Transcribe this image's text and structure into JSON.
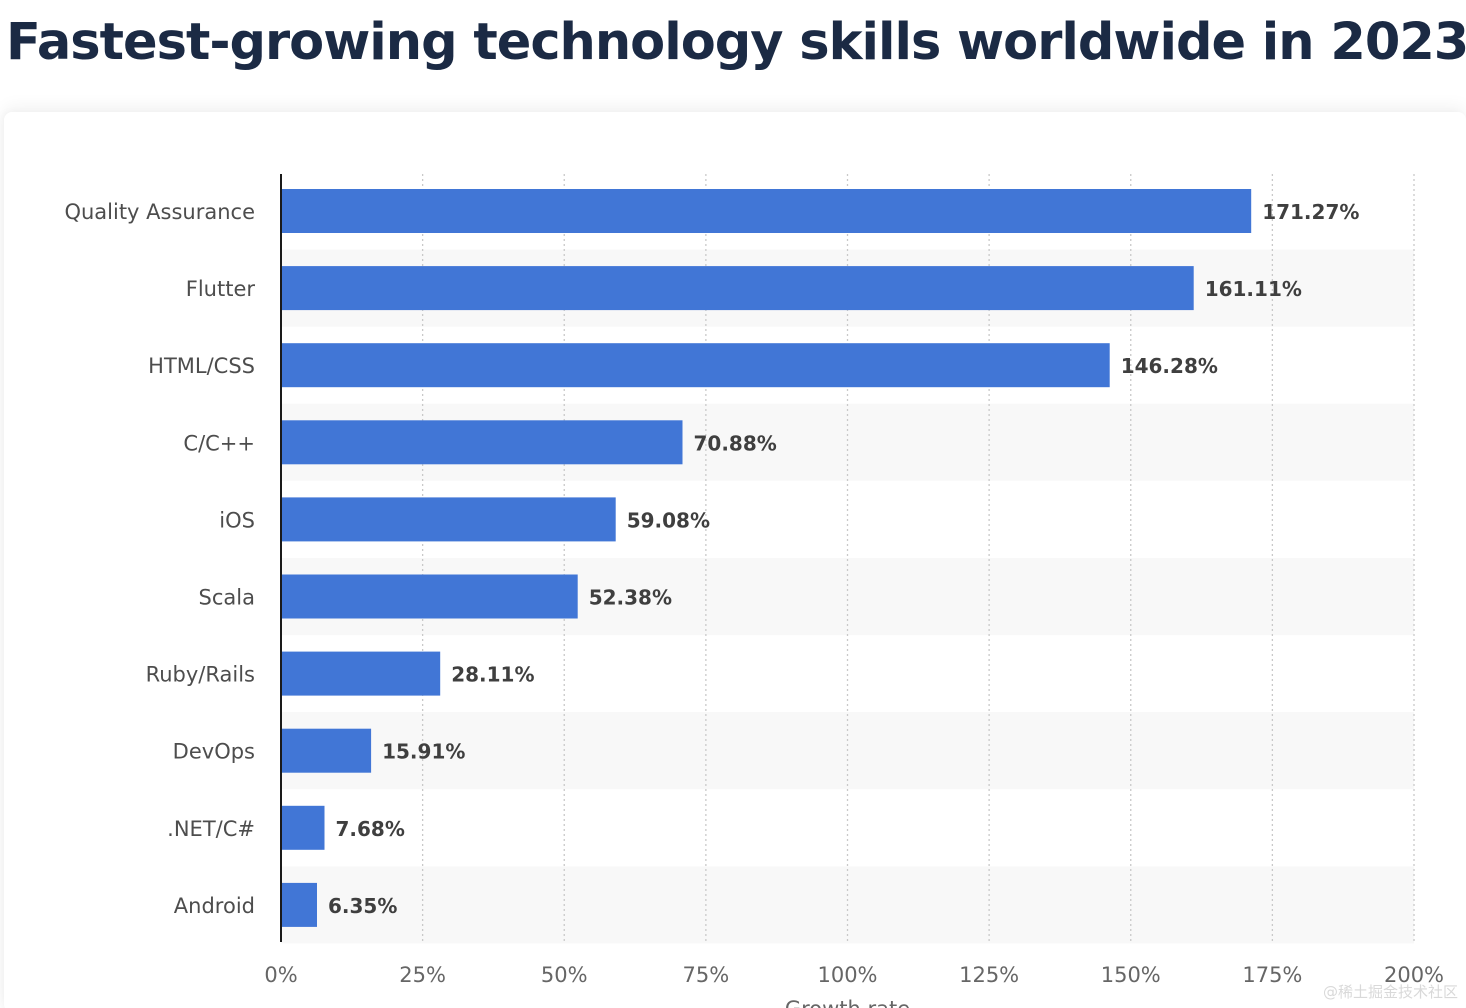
{
  "page": {
    "title": "Fastest-growing technology skills worldwide in 2023",
    "watermark": "@稀土掘金技术社区"
  },
  "chart_data": {
    "type": "bar",
    "orientation": "horizontal",
    "title": "Fastest-growing technology skills worldwide in 2023",
    "categories": [
      "Quality Assurance",
      "Flutter",
      "HTML/CSS",
      "C/C++",
      "iOS",
      "Scala",
      "Ruby/Rails",
      "DevOps",
      ".NET/C#",
      "Android"
    ],
    "values": [
      171.27,
      161.11,
      146.28,
      70.88,
      59.08,
      52.38,
      28.11,
      15.91,
      7.68,
      6.35
    ],
    "data_labels": [
      "171.27%",
      "161.11%",
      "146.28%",
      "70.88%",
      "59.08%",
      "52.38%",
      "28.11%",
      "15.91%",
      "7.68%",
      "6.35%"
    ],
    "xlim": [
      0,
      200
    ],
    "x_ticks": [
      0,
      25,
      50,
      75,
      100,
      125,
      150,
      175,
      200
    ],
    "x_tick_labels": [
      "0%",
      "25%",
      "50%",
      "75%",
      "100%",
      "125%",
      "150%",
      "175%",
      "200%"
    ],
    "xlabel": "Growth rate",
    "ylabel": "",
    "grid": "vertical dotted",
    "colors": {
      "bar": "#4176d6",
      "label_text": "#4d4d4d",
      "value_text": "#3f3f3f",
      "grid": "#c9c9c9",
      "axis": "#1a1a1a",
      "band": "#f8f8f8"
    }
  }
}
